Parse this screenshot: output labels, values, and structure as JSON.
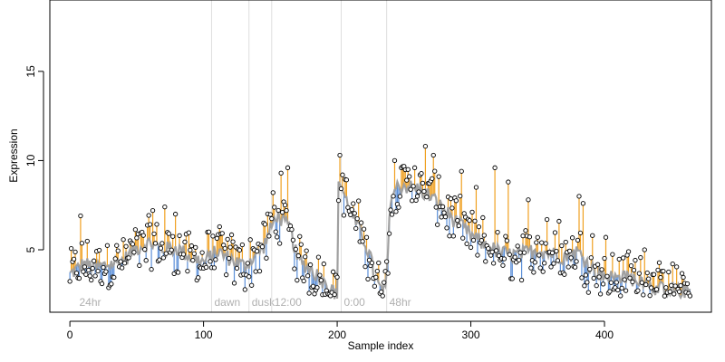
{
  "chart_data": {
    "type": "scatter",
    "title": "",
    "xlabel": "Sample index",
    "ylabel": "Expression",
    "xlim": [
      -15,
      480
    ],
    "ylim": [
      1.5,
      19
    ],
    "xticks": [
      0,
      100,
      200,
      300,
      400
    ],
    "yticks": [
      5,
      10,
      15
    ],
    "grid": false,
    "legend": "none",
    "colors": {
      "fitted_line": "#a0a0a0",
      "above_fit": "#f0a020",
      "below_fit": "#5b8fd8",
      "points": "#000000",
      "phase_line": "#dedede",
      "phase_text": "#b0b0b0"
    },
    "phase_markers": [
      {
        "x": 5,
        "label": "24hr",
        "line": false
      },
      {
        "x": 106,
        "label": "dawn",
        "line": true
      },
      {
        "x": 134,
        "label": "dusk",
        "line": true
      },
      {
        "x": 151,
        "label": "12:00",
        "line": true
      },
      {
        "x": 203,
        "label": "0:00",
        "line": true
      },
      {
        "x": 237,
        "label": "48hr",
        "line": true
      }
    ],
    "anchors": [
      [
        0,
        3.6
      ],
      [
        10,
        4.2
      ],
      [
        20,
        4.0
      ],
      [
        30,
        4.2
      ],
      [
        40,
        4.4
      ],
      [
        50,
        5.1
      ],
      [
        60,
        5.4
      ],
      [
        70,
        5.0
      ],
      [
        80,
        5.1
      ],
      [
        90,
        4.6
      ],
      [
        100,
        4.3
      ],
      [
        110,
        4.9
      ],
      [
        120,
        4.5
      ],
      [
        130,
        4.1
      ],
      [
        135,
        4.4
      ],
      [
        145,
        5.2
      ],
      [
        150,
        6.1
      ],
      [
        155,
        7.0
      ],
      [
        160,
        6.5
      ],
      [
        165,
        6.2
      ],
      [
        170,
        4.5
      ],
      [
        175,
        4.2
      ],
      [
        185,
        3.6
      ],
      [
        190,
        3.2
      ],
      [
        195,
        2.7
      ],
      [
        200,
        2.4
      ],
      [
        201,
        9.0
      ],
      [
        206,
        7.9
      ],
      [
        210,
        7.2
      ],
      [
        215,
        6.3
      ],
      [
        220,
        5.6
      ],
      [
        225,
        4.5
      ],
      [
        228,
        3.5
      ],
      [
        232,
        2.8
      ],
      [
        236,
        2.7
      ],
      [
        238,
        4.8
      ],
      [
        240,
        8.0
      ],
      [
        245,
        8.5
      ],
      [
        250,
        8.6
      ],
      [
        260,
        8.4
      ],
      [
        270,
        8.0
      ],
      [
        280,
        7.2
      ],
      [
        290,
        6.5
      ],
      [
        300,
        5.8
      ],
      [
        310,
        5.3
      ],
      [
        320,
        4.9
      ],
      [
        330,
        4.7
      ],
      [
        340,
        4.8
      ],
      [
        350,
        5.0
      ],
      [
        360,
        4.8
      ],
      [
        370,
        4.6
      ],
      [
        380,
        4.9
      ],
      [
        390,
        4.0
      ],
      [
        400,
        3.5
      ],
      [
        410,
        3.4
      ],
      [
        420,
        3.4
      ],
      [
        430,
        3.3
      ],
      [
        440,
        2.8
      ],
      [
        450,
        2.8
      ],
      [
        460,
        2.7
      ],
      [
        464,
        2.8
      ]
    ],
    "highlights": [
      [
        8,
        6.9
      ],
      [
        62,
        7.2
      ],
      [
        71,
        7.4
      ],
      [
        79,
        7.0
      ],
      [
        104,
        6.0
      ],
      [
        113,
        5.9
      ],
      [
        145,
        6.5
      ],
      [
        152,
        8.2
      ],
      [
        158,
        9.3
      ],
      [
        163,
        9.6
      ],
      [
        202,
        10.3
      ],
      [
        204,
        9.2
      ],
      [
        243,
        10.0
      ],
      [
        248,
        9.6
      ],
      [
        253,
        9.5
      ],
      [
        258,
        9.6
      ],
      [
        262,
        9.2
      ],
      [
        266,
        10.8
      ],
      [
        272,
        10.3
      ],
      [
        276,
        9.1
      ],
      [
        293,
        9.4
      ],
      [
        304,
        8.5
      ],
      [
        318,
        9.6
      ],
      [
        328,
        8.8
      ],
      [
        343,
        7.8
      ],
      [
        357,
        6.7
      ],
      [
        366,
        6.6
      ],
      [
        381,
        8.0
      ],
      [
        384,
        7.6
      ],
      [
        391,
        5.8
      ],
      [
        401,
        5.7
      ],
      [
        418,
        4.9
      ],
      [
        430,
        5.0
      ],
      [
        450,
        3.0
      ]
    ],
    "n_points": 465
  }
}
